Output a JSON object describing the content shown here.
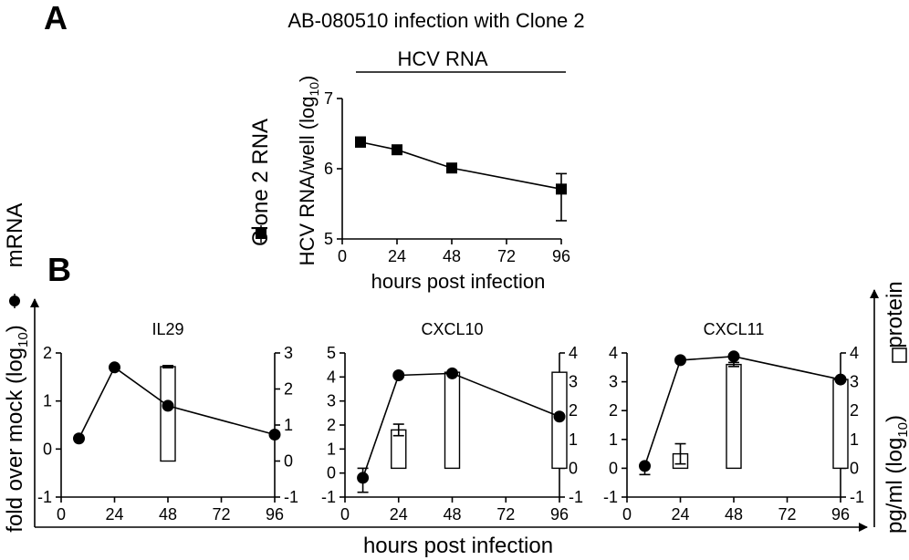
{
  "panel_labels": {
    "a": "A",
    "b": "B"
  },
  "chart_data": [
    {
      "type": "line",
      "title": "AB-080510 infection with Clone 2",
      "subtitle": "HCV RNA",
      "xlabel": "hours post infection",
      "ylabel": "HCV RNA/well (log",
      "ylabel_sub": "10",
      "ylabel_suffix": ")",
      "legend": {
        "label": "Clone 2 RNA",
        "marker": "square",
        "placement": "left, rotated"
      },
      "xlim": [
        0,
        96
      ],
      "ylim": [
        5,
        7
      ],
      "xticks": [
        0,
        24,
        48,
        72,
        96
      ],
      "yticks": [
        5,
        6,
        7
      ],
      "series": [
        {
          "name": "Clone 2 RNA",
          "marker": "square",
          "x": [
            8,
            24,
            48,
            96
          ],
          "y": [
            6.38,
            6.27,
            6.01,
            5.71
          ],
          "err": [
            [
              0.07,
              0.07
            ],
            [
              0.03,
              0.03
            ],
            [
              0.03,
              0.03
            ],
            [
              0.45,
              0.22
            ]
          ]
        }
      ],
      "grid": false
    },
    {
      "type": "line",
      "title": "IL29",
      "xlim": [
        0,
        96
      ],
      "ylim": [
        -1,
        2
      ],
      "y2lim": [
        -1,
        3
      ],
      "xticks": [
        0,
        24,
        48,
        72,
        96
      ],
      "yticks": [
        -1,
        0,
        1,
        2
      ],
      "y2ticks": [
        -1,
        0,
        1,
        2,
        3
      ],
      "mrna": {
        "x": [
          8,
          24,
          48,
          96
        ],
        "y": [
          0.22,
          1.7,
          0.9,
          0.3
        ],
        "err": [
          [
            0,
            0
          ],
          [
            0,
            0
          ],
          [
            0,
            0
          ],
          [
            0,
            0
          ]
        ]
      },
      "protein": {
        "x": [
          48
        ],
        "y": [
          2.62
        ],
        "err": [
          [
            0.03,
            0.03
          ]
        ]
      },
      "grid": false
    },
    {
      "type": "line",
      "title": "CXCL10",
      "xlim": [
        0,
        96
      ],
      "ylim": [
        -1,
        5
      ],
      "y2lim": [
        -1,
        4
      ],
      "xticks": [
        0,
        24,
        48,
        72,
        96
      ],
      "yticks": [
        -1,
        0,
        1,
        2,
        3,
        4,
        5
      ],
      "y2ticks": [
        -1,
        0,
        1,
        2,
        3,
        4
      ],
      "mrna": {
        "x": [
          8,
          24,
          48,
          96
        ],
        "y": [
          -0.2,
          4.07,
          4.15,
          2.35
        ],
        "err": [
          [
            0.6,
            0.4
          ],
          [
            0,
            0
          ],
          [
            0,
            0
          ],
          [
            0,
            0
          ]
        ]
      },
      "protein": {
        "x": [
          24,
          48,
          96
        ],
        "y": [
          1.33,
          3.33,
          3.33
        ],
        "err": [
          [
            0.2,
            0.2
          ],
          [
            0,
            0
          ],
          [
            0,
            0
          ]
        ]
      },
      "grid": false
    },
    {
      "type": "line",
      "title": "CXCL11",
      "xlim": [
        0,
        96
      ],
      "ylim": [
        -1,
        4
      ],
      "y2lim": [
        -1,
        4
      ],
      "xticks": [
        0,
        24,
        48,
        72,
        96
      ],
      "yticks": [
        -1,
        0,
        1,
        2,
        3,
        4
      ],
      "y2ticks": [
        -1,
        0,
        1,
        2,
        3,
        4
      ],
      "mrna": {
        "x": [
          8,
          24,
          48,
          96
        ],
        "y": [
          0.08,
          3.75,
          3.88,
          3.08
        ],
        "err": [
          [
            0.3,
            0
          ],
          [
            0,
            0
          ],
          [
            0,
            0
          ],
          [
            0,
            0
          ]
        ]
      },
      "protein": {
        "x": [
          24,
          48,
          96
        ],
        "y": [
          0.5,
          3.6,
          3.08
        ],
        "err": [
          [
            0.35,
            0.35
          ],
          [
            0.07,
            0.07
          ],
          [
            0,
            0
          ]
        ]
      },
      "grid": false
    }
  ],
  "panel_b": {
    "xlabel": "hours post infection",
    "left_axis_label": "fold over mock (log",
    "left_axis_sub": "10",
    "left_axis_suffix": ")",
    "left_legend": "mRNA",
    "right_axis_label": "pg/ml (log",
    "right_axis_sub": "10",
    "right_axis_suffix": ")",
    "right_legend": "protein"
  }
}
